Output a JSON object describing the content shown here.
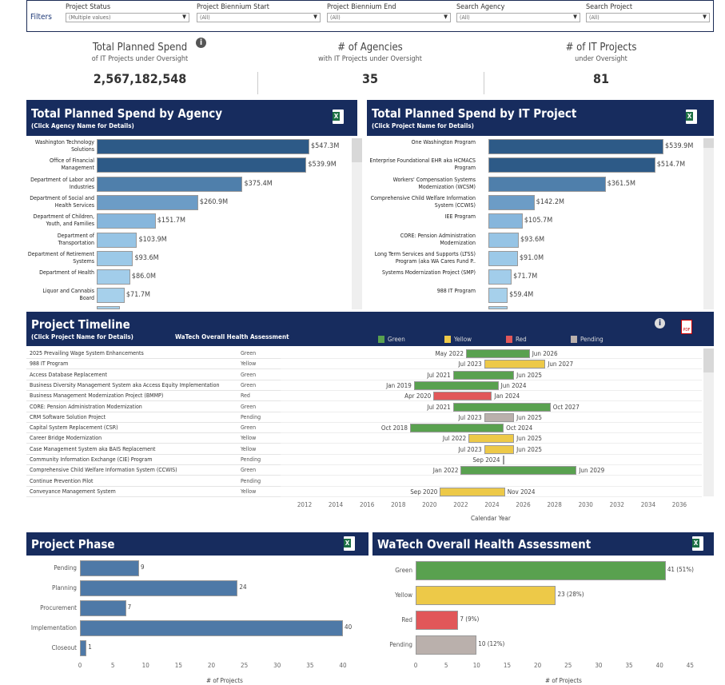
{
  "filters": {
    "label": "Filters",
    "items": [
      {
        "title": "Project Status",
        "value": "(Multiple values)"
      },
      {
        "title": "Project Biennium Start",
        "value": "(All)"
      },
      {
        "title": "Project Biennium End",
        "value": "(All)"
      },
      {
        "title": "Search Agency",
        "value": "(All)"
      },
      {
        "title": "Search Project",
        "value": "(All)"
      }
    ]
  },
  "kpis": [
    {
      "title": "Total Planned Spend",
      "sub": "of IT Projects under Oversight",
      "value": "2,567,182,548",
      "icon": "info-icon"
    },
    {
      "title": "# of Agencies",
      "sub": "with IT Projects under Oversight",
      "value": "35"
    },
    {
      "title": "# of IT Projects",
      "sub": "under Oversight",
      "value": "81"
    }
  ],
  "colors": {
    "header": "#172c5e",
    "green": "#59a14f",
    "yellow": "#edc948",
    "red": "#e15759",
    "pending": "#bab0ac",
    "phase": "#4e79a7"
  },
  "chart_data": [
    {
      "type": "bar",
      "orientation": "horizontal",
      "title": "Total Planned Spend by Agency",
      "subtitle": "(Click Agency Name for Details)",
      "unit": "$M",
      "categories": [
        "Washington Technology Solutions",
        "Office of Financial Management",
        "Department of Labor and Industries",
        "Department of Social and Health Services",
        "Department of Children, Youth, and Families",
        "Department of Transportation",
        "Department of Retirement Systems",
        "Department of Health",
        "Liquor and Cannabis Board"
      ],
      "values": [
        547.3,
        539.9,
        375.4,
        260.9,
        151.7,
        103.9,
        93.6,
        86.0,
        71.7
      ],
      "labels": [
        "$547.3M",
        "$539.9M",
        "$375.4M",
        "$260.9M",
        "$151.7M",
        "$103.9M",
        "$93.6M",
        "$86.0M",
        "$71.7M"
      ]
    },
    {
      "type": "bar",
      "orientation": "horizontal",
      "title": "Total Planned Spend by IT Project",
      "subtitle": "(Click Project Name for Details)",
      "unit": "$M",
      "categories": [
        "One Washington Program",
        "Enterprise Foundational EHR aka HCMACS Program",
        "Workers' Compensation Systems Modernization (WCSM)",
        "Comprehensive Child Welfare Information System (CCWIS)",
        "IEE Program",
        "CORE: Pension Administration Modernization",
        "Long Term Services and Supports (LTSS) Program (aka WA Cares Fund P..",
        "Systems Modernization Project (SMP)",
        "988 IT Program"
      ],
      "values": [
        539.9,
        514.7,
        361.5,
        142.2,
        105.7,
        93.6,
        91.0,
        71.7,
        59.4
      ],
      "labels": [
        "$539.9M",
        "$514.7M",
        "$361.5M",
        "$142.2M",
        "$105.7M",
        "$93.6M",
        "$91.0M",
        "$71.7M",
        "$59.4M"
      ]
    },
    {
      "type": "gantt",
      "title": "Project Timeline",
      "subtitle": "(Click Project Name for Details)",
      "status_header": "WaTech Overall Health Assessment",
      "legend": [
        "Green",
        "Yellow",
        "Red",
        "Pending"
      ],
      "xlabel": "Calendar Year",
      "xlim": [
        2011,
        2037
      ],
      "xticks": [
        2012,
        2014,
        2016,
        2018,
        2020,
        2022,
        2024,
        2026,
        2028,
        2030,
        2032,
        2034,
        2036
      ],
      "rows": [
        {
          "name": "2025 Prevailing Wage System Enhancements",
          "status": "Green",
          "start": "May 2022",
          "end": "Jun 2026"
        },
        {
          "name": "988 IT Program",
          "status": "Yellow",
          "start": "Jul 2023",
          "end": "Jun 2027"
        },
        {
          "name": "Access Database Replacement",
          "status": "Green",
          "start": "Jul 2021",
          "end": "Jun 2025"
        },
        {
          "name": "Business Diversity Management System aka Access Equity Implementation",
          "status": "Green",
          "start": "Jan 2019",
          "end": "Jun 2024"
        },
        {
          "name": "Business Management Modernization Project (BMMP)",
          "status": "Red",
          "start": "Apr 2020",
          "end": "Jan 2024"
        },
        {
          "name": "CORE: Pension Administration Modernization",
          "status": "Green",
          "start": "Jul 2021",
          "end": "Oct 2027"
        },
        {
          "name": "CRM Software Solution Project",
          "status": "Pending",
          "start": "Jul 2023",
          "end": "Jun 2025"
        },
        {
          "name": "Capital System Replacement (CSR)",
          "status": "Green",
          "start": "Oct 2018",
          "end": "Oct 2024"
        },
        {
          "name": "Career Bridge Modernization",
          "status": "Yellow",
          "start": "Jul 2022",
          "end": "Jun 2025"
        },
        {
          "name": "Case Management System aka BAIS Replacement",
          "status": "Yellow",
          "start": "Jul 2023",
          "end": "Jun 2025"
        },
        {
          "name": "Community Information Exchange (CIE) Program",
          "status": "Pending",
          "start": "Sep 2024",
          "end": ""
        },
        {
          "name": "Comprehensive Child Welfare Information System (CCWIS)",
          "status": "Green",
          "start": "Jan 2022",
          "end": "Jun 2029"
        },
        {
          "name": "Continue Prevention Pilot",
          "status": "Pending",
          "start": "",
          "end": ""
        },
        {
          "name": "Conveyance Management System",
          "status": "Yellow",
          "start": "Sep 2020",
          "end": "Nov 2024"
        }
      ]
    },
    {
      "type": "bar",
      "orientation": "horizontal",
      "title": "Project Phase",
      "xlabel": "# of Projects",
      "xlim": [
        0,
        43
      ],
      "xticks": [
        0,
        5,
        10,
        15,
        20,
        25,
        30,
        35,
        40
      ],
      "categories": [
        "Pending",
        "Planning",
        "Procurement",
        "Implementation",
        "Closeout"
      ],
      "values": [
        9,
        24,
        7,
        40,
        1
      ],
      "labels": [
        "9",
        "24",
        "7",
        "40",
        "1"
      ]
    },
    {
      "type": "bar",
      "orientation": "horizontal",
      "title": "WaTech Overall Health Assessment",
      "xlabel": "# of Projects",
      "xlim": [
        0,
        48
      ],
      "xticks": [
        0,
        5,
        10,
        15,
        20,
        25,
        30,
        35,
        40,
        45
      ],
      "categories": [
        "Green",
        "Yellow",
        "Red",
        "Pending"
      ],
      "values": [
        41,
        23,
        7,
        10
      ],
      "labels": [
        "41 (51%)",
        "23 (28%)",
        "7 (9%)",
        "10 (12%)"
      ]
    }
  ]
}
